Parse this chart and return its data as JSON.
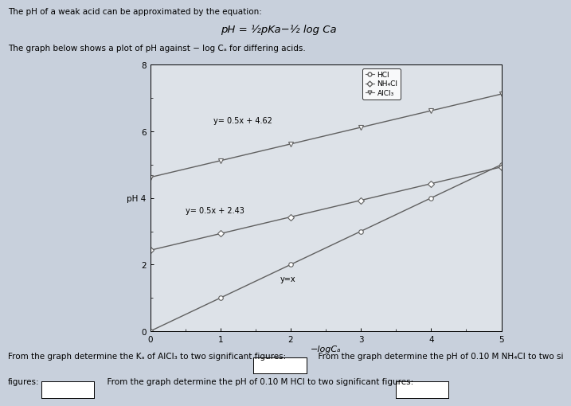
{
  "title_text": "The pH of a weak acid can be approximated by the equation:",
  "equation": "pH = ½pKa−½ log Ca",
  "subtitle": "The graph below shows a plot of pH against − log Cₐ for differing acids.",
  "xlabel": "−logCₐ",
  "xlim": [
    0,
    5
  ],
  "ylim": [
    0,
    8
  ],
  "xticks": [
    0,
    1,
    2,
    3,
    4,
    5
  ],
  "yticks": [
    0,
    2,
    4,
    6,
    8
  ],
  "line_HCl": {
    "x": [
      0,
      1,
      2,
      3,
      4,
      5
    ],
    "y": [
      0,
      1,
      2,
      3,
      4,
      5
    ],
    "label": "HCl",
    "marker": "o",
    "annotation": "y=x",
    "ann_x": 1.85,
    "ann_y": 1.5
  },
  "line_NH4Cl": {
    "x": [
      0,
      1,
      2,
      3,
      4,
      5
    ],
    "y": [
      2.43,
      2.93,
      3.43,
      3.93,
      4.43,
      4.93
    ],
    "label": "NH₄Cl",
    "marker": "D",
    "annotation": "y= 0.5x + 2.43",
    "ann_x": 0.5,
    "ann_y": 3.55
  },
  "line_AlCl3": {
    "x": [
      0,
      1,
      2,
      3,
      4,
      5
    ],
    "y": [
      4.62,
      5.12,
      5.62,
      6.12,
      6.62,
      7.12
    ],
    "label": "AlCl₃",
    "marker": "v",
    "annotation": "y= 0.5x + 4.62",
    "ann_x": 0.9,
    "ann_y": 6.25
  },
  "line_color": "#606060",
  "markersize": 4,
  "linewidth": 1.0,
  "bg_color": "#c8d0dc",
  "plot_bg_color": "#dde2e8",
  "bottom_text1": "From the graph determine the Kₐ of AlCl₃ to two significant figures:",
  "bottom_text2": "  From the graph determine the pH of 0.10 M NH₄Cl to two si",
  "bottom_text3": "figures:",
  "bottom_text4": "  From the graph determine the pH of 0.10 M HCl to two significant figures:",
  "font_size_main": 7.5,
  "font_size_eq": 9.5
}
